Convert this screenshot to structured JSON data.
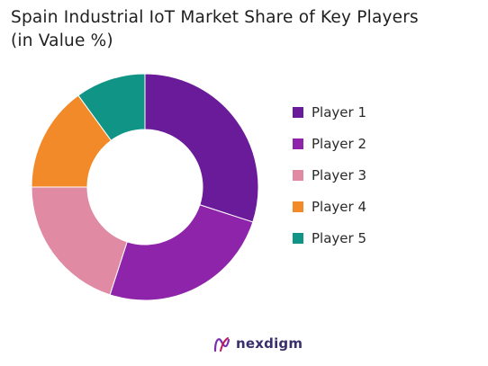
{
  "chart_data": {
    "type": "pie",
    "title": "Spain Industrial IoT Market Share of Key Players",
    "subtitle": "(in Value %)",
    "categories": [
      "Player 1",
      "Player 2",
      "Player 3",
      "Player 4",
      "Player 5"
    ],
    "values": [
      30,
      25,
      20,
      15,
      10
    ],
    "colors": [
      "#6a1b9a",
      "#8e24aa",
      "#e08aa3",
      "#f28a2a",
      "#0f9486"
    ],
    "donut": true,
    "legend_position": "right"
  },
  "brand": {
    "name": "nexdigm"
  }
}
